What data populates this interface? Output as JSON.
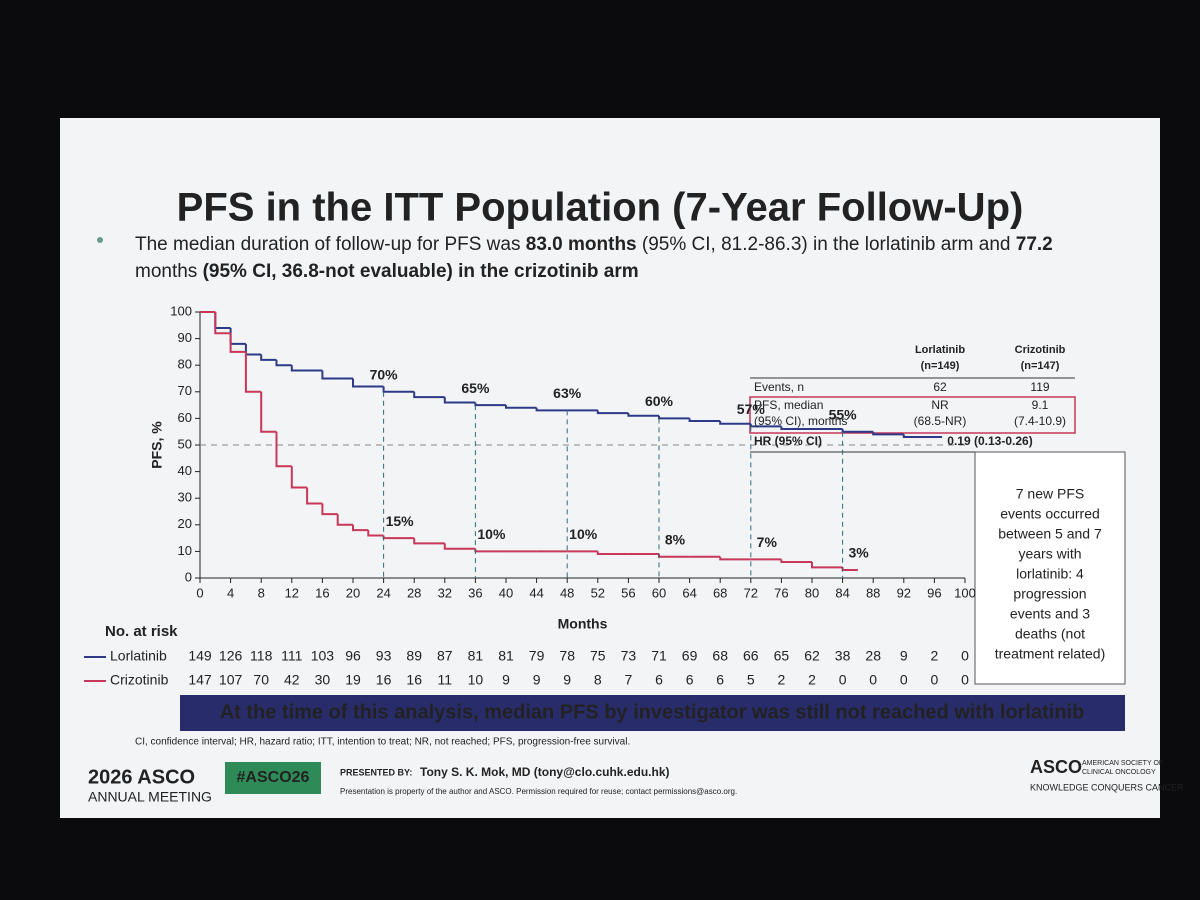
{
  "chart_data": {
    "type": "line",
    "step": true,
    "title": "PFS in the ITT Population (7-Year Follow-Up)",
    "bullet": [
      "The median duration of follow-up for PFS was ",
      "83.0 months",
      " (95% CI, 81.2-86.3) in the lorlatinib arm and ",
      "77.2",
      "months",
      " (95% CI, 36.8-not evaluable) in the crizotinib arm"
    ],
    "x_label": "Months",
    "y_label": "PFS, %",
    "xlim": [
      0,
      100
    ],
    "xticks": [
      0,
      4,
      8,
      12,
      16,
      20,
      24,
      28,
      32,
      36,
      40,
      44,
      48,
      52,
      56,
      60,
      64,
      68,
      72,
      76,
      80,
      84,
      88,
      92,
      96,
      100
    ],
    "ylim": [
      0,
      100
    ],
    "yticks": [
      0,
      10,
      20,
      30,
      40,
      50,
      60,
      70,
      80,
      90,
      100
    ],
    "reference_y": 50,
    "landmarks_x": [
      24,
      36,
      48,
      60,
      72,
      84
    ],
    "series": [
      {
        "name": "Lorlatinib",
        "color": "#2e3a87",
        "x": [
          0,
          2,
          4,
          6,
          8,
          10,
          12,
          16,
          20,
          24,
          28,
          32,
          36,
          40,
          44,
          48,
          52,
          56,
          60,
          64,
          68,
          72,
          76,
          80,
          84,
          88,
          92,
          97
        ],
        "values": [
          100,
          94,
          88,
          84,
          82,
          80,
          78,
          75,
          72,
          70,
          68,
          66,
          65,
          64,
          63,
          63,
          62,
          61,
          60,
          59,
          58,
          57,
          56,
          56,
          55,
          54,
          53,
          53
        ],
        "landmark_values": [
          70,
          65,
          63,
          60,
          57,
          55
        ],
        "landmark_labels": [
          "70%",
          "65%",
          "63%",
          "60%",
          "57%",
          "55%"
        ],
        "at_risk": [
          149,
          126,
          118,
          111,
          103,
          96,
          93,
          89,
          87,
          81,
          81,
          79,
          78,
          75,
          73,
          71,
          69,
          68,
          66,
          65,
          62,
          38,
          28,
          9,
          2,
          0
        ]
      },
      {
        "name": "Crizotinib",
        "color": "#c8375a",
        "x": [
          0,
          2,
          4,
          6,
          8,
          10,
          12,
          14,
          16,
          18,
          20,
          22,
          24,
          28,
          32,
          36,
          40,
          44,
          48,
          52,
          56,
          60,
          64,
          68,
          72,
          76,
          80,
          84,
          86
        ],
        "values": [
          100,
          92,
          85,
          70,
          55,
          42,
          34,
          28,
          24,
          20,
          18,
          16,
          15,
          13,
          11,
          10,
          10,
          10,
          10,
          9,
          9,
          8,
          8,
          7,
          7,
          6,
          4,
          3,
          3
        ],
        "landmark_values": [
          15,
          10,
          10,
          8,
          7,
          3
        ],
        "landmark_labels": [
          "15%",
          "10%",
          "10%",
          "8%",
          "7%",
          "3%"
        ],
        "at_risk": [
          147,
          107,
          70,
          42,
          30,
          19,
          16,
          16,
          11,
          10,
          9,
          9,
          9,
          8,
          7,
          6,
          6,
          6,
          5,
          2,
          2,
          0,
          0,
          0,
          0,
          0
        ]
      }
    ],
    "risk_title": "No. at risk",
    "stats_table": {
      "columns": [
        {
          "name": "Lorlatinib",
          "n": "(n=149)"
        },
        {
          "name": "Crizotinib",
          "n": "(n=147)"
        }
      ],
      "events_label": "Events, n",
      "events": [
        62,
        119
      ],
      "median_label": [
        "PFS, median",
        "(95% CI), months"
      ],
      "median": [
        [
          "NR",
          "(68.5-NR)"
        ],
        [
          "9.1",
          "(7.4-10.9)"
        ]
      ],
      "hr_label": "HR (95% CI)",
      "hr": "0.19 (0.13-0.26)"
    },
    "note": [
      "7 new PFS",
      "events occurred",
      "between 5 and 7",
      "years with",
      "lorlatinib: 4",
      "progression",
      "events and 3",
      "deaths (not",
      "treatment related)"
    ]
  },
  "footer": {
    "banner": "At the time of this analysis, median PFS by investigator was still not reached with lorlatinib",
    "abbreviations": "CI, confidence interval; HR, hazard ratio; ITT, intention to treat; NR, not reached; PFS, progression-free survival.",
    "meeting": "2026 ASCO",
    "meeting_sub": "ANNUAL MEETING",
    "hashtag": "#ASCO26",
    "presented_by": "PRESENTED BY:",
    "presenter": "Tony S. K. Mok, MD (tony@clo.cuhk.edu.hk)",
    "property": "Presentation is property of the author and ASCO. Permission required for reuse; contact permissions@asco.org.",
    "org": "ASCO",
    "org_name": [
      "AMERICAN SOCIETY OF",
      "CLINICAL ONCOLOGY"
    ],
    "tagline": "KNOWLEDGE CONQUERS CANCER"
  }
}
